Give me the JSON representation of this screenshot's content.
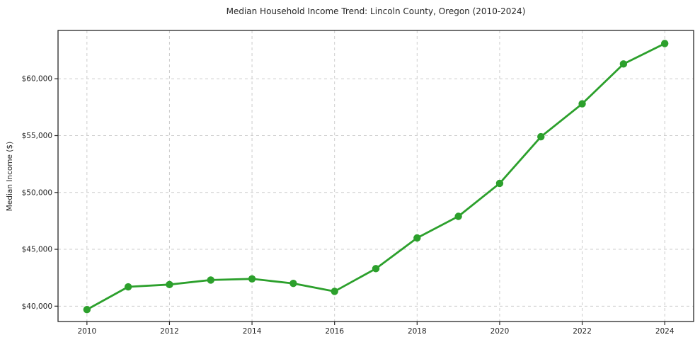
{
  "chart_data": {
    "type": "line",
    "title": "Median Household Income Trend: Lincoln County, Oregon (2010-2024)",
    "xlabel": "",
    "ylabel": "Median Income ($)",
    "series_name": "median-household-income",
    "x": [
      2010,
      2011,
      2012,
      2013,
      2014,
      2015,
      2016,
      2017,
      2018,
      2019,
      2020,
      2021,
      2022,
      2023,
      2024
    ],
    "values": [
      39700,
      41700,
      41900,
      42300,
      42400,
      42000,
      41300,
      43300,
      46000,
      47900,
      50800,
      54900,
      57800,
      61300,
      63100
    ],
    "xticks": [
      2010,
      2012,
      2014,
      2016,
      2018,
      2020,
      2022,
      2024
    ],
    "xtick_labels": [
      "2010",
      "2012",
      "2014",
      "2016",
      "2018",
      "2020",
      "2022",
      "2024"
    ],
    "yticks": [
      40000,
      45000,
      50000,
      55000,
      60000
    ],
    "ytick_labels": [
      "$40,000",
      "$45,000",
      "$50,000",
      "$55,000",
      "$60,000"
    ],
    "xlim": [
      2009.3,
      2024.7
    ],
    "ylim": [
      38650,
      64250
    ],
    "grid": true,
    "grid_style": "dashed",
    "legend": "none",
    "marker": "circle",
    "line_color": "#2ca02c",
    "grid_color": "#cccccc",
    "axis_color": "#262626",
    "background": "#ffffff"
  }
}
